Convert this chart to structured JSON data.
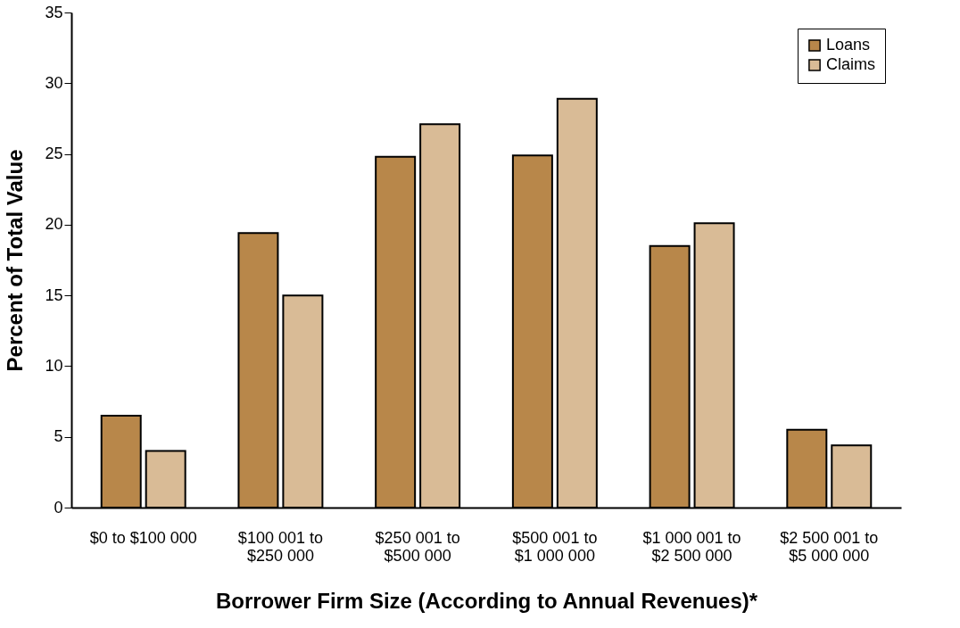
{
  "chart_data": {
    "type": "bar",
    "xlabel": "Borrower Firm Size (According to Annual Revenues)*",
    "ylabel": "Percent of Total Value",
    "categories": [
      "$0 to $100 000",
      "$100 001 to\n$250 000",
      "$250 001 to\n$500 000",
      "$500 001 to\n$1 000 000",
      "$1 000 001 to\n$2 500 000",
      "$2 500 001 to\n$5 000 000"
    ],
    "series": [
      {
        "name": "Loans",
        "color": "#b8874a",
        "values": [
          6.5,
          19.4,
          24.8,
          24.9,
          18.5,
          5.5
        ]
      },
      {
        "name": "Claims",
        "color": "#d9bb96",
        "values": [
          4.0,
          15.0,
          27.1,
          28.9,
          20.1,
          4.4
        ]
      }
    ],
    "ylim": [
      0,
      35
    ],
    "yticks": [
      0,
      5,
      10,
      15,
      20,
      25,
      30,
      35
    ],
    "grid": false,
    "legend": "top right"
  }
}
